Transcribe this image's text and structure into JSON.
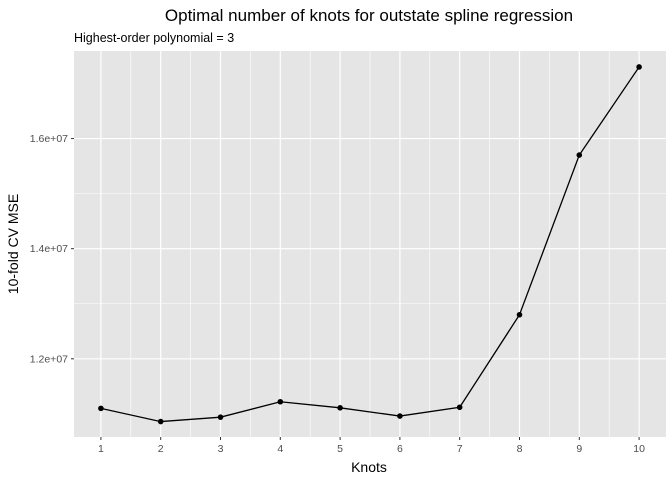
{
  "chart_data": {
    "type": "line",
    "title": "Optimal number of knots for outstate spline regression",
    "subtitle": "Highest-order polynomial = 3",
    "xlabel": "Knots",
    "ylabel": "10-fold CV MSE",
    "x": [
      1,
      2,
      3,
      4,
      5,
      6,
      7,
      8,
      9,
      10
    ],
    "series": [
      {
        "values": [
          11100000,
          10860000,
          10940000,
          11220000,
          11110000,
          10960000,
          11120000,
          12800000,
          15700000,
          17300000
        ]
      }
    ],
    "xlim": [
      0.55,
      10.45
    ],
    "ylim": [
      10580000,
      17590000
    ],
    "xticks": [
      1,
      2,
      3,
      4,
      5,
      6,
      7,
      8,
      9,
      10
    ],
    "yticks": [
      12000000,
      14000000,
      16000000
    ],
    "ytick_labels": [
      "1.2e+07",
      "1.4e+07",
      "1.6e+07"
    ],
    "grid": true,
    "colors": {
      "panel_background": "#e5e5e5",
      "grid": "#ffffff",
      "line": "#000000",
      "point": "#000000",
      "tick_text": "#4d4d4d",
      "title_text": "#000000"
    }
  }
}
